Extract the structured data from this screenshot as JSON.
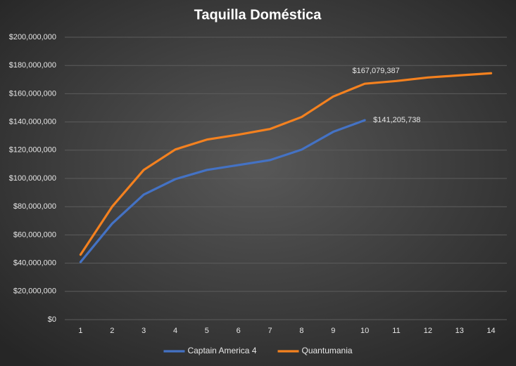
{
  "chart_data": {
    "type": "line",
    "title": "Taquilla Doméstica",
    "categories": [
      "1",
      "2",
      "3",
      "4",
      "5",
      "6",
      "7",
      "8",
      "9",
      "10",
      "11",
      "12",
      "13",
      "14"
    ],
    "series": [
      {
        "name": "Captain America 4",
        "color": "#4472c4",
        "values": [
          40800000,
          68000000,
          88500000,
          99500000,
          106000000,
          109500000,
          113000000,
          120400000,
          133000000,
          141205738,
          null,
          null,
          null,
          null
        ],
        "value_labels": [
          null,
          null,
          null,
          null,
          null,
          null,
          null,
          null,
          null,
          "$141,205,738",
          null,
          null,
          null,
          null
        ]
      },
      {
        "name": "Quantumania",
        "color": "#f4811f",
        "values": [
          46000000,
          80000000,
          106000000,
          120500000,
          127500000,
          131000000,
          135000000,
          143500000,
          158000000,
          167079387,
          169000000,
          171500000,
          173000000,
          174500000
        ],
        "value_labels": [
          null,
          null,
          null,
          null,
          null,
          null,
          null,
          null,
          null,
          "$167,079,387",
          null,
          null,
          null,
          null
        ]
      }
    ],
    "ylim": [
      0,
      200000000
    ],
    "yticks": [
      {
        "value": 0,
        "label": "$0"
      },
      {
        "value": 20000000,
        "label": "$20,000,000"
      },
      {
        "value": 40000000,
        "label": "$40,000,000"
      },
      {
        "value": 60000000,
        "label": "$60,000,000"
      },
      {
        "value": 80000000,
        "label": "$80,000,000"
      },
      {
        "value": 100000000,
        "label": "$100,000,000"
      },
      {
        "value": 120000000,
        "label": "$120,000,000"
      },
      {
        "value": 140000000,
        "label": "$140,000,000"
      },
      {
        "value": 160000000,
        "label": "$160,000,000"
      },
      {
        "value": 180000000,
        "label": "$180,000,000"
      },
      {
        "value": 200000000,
        "label": "$200,000,000"
      }
    ],
    "grid": true,
    "legend": "bottom"
  }
}
